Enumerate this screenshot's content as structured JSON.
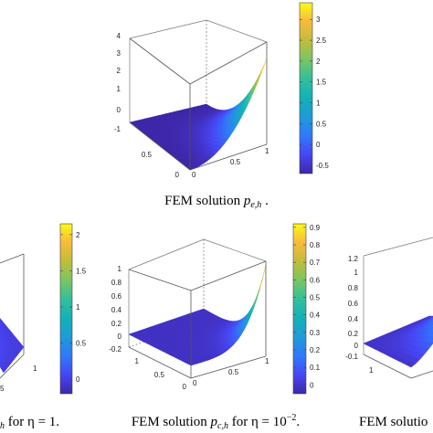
{
  "chart_data": [
    {
      "type": "surface",
      "panel": "top",
      "caption": "FEM solution p_{e,h} .",
      "caption_parts": {
        "prefix": "FEM solution ",
        "var": "p",
        "sub": "e,h",
        "suffix": " ."
      },
      "zticks": [
        "4",
        "3",
        "2",
        "1",
        "0",
        "-1"
      ],
      "zlim": [
        -1,
        4
      ],
      "xticks": [
        "0",
        "0.5",
        "1"
      ],
      "yticks": [
        "0",
        "0.5"
      ],
      "colorbar_ticks": [
        "3",
        "2.5",
        "2",
        "1.5",
        "1",
        "0.5",
        "0",
        "-0.5"
      ],
      "colorbar_range": [
        -0.7,
        3.4
      ],
      "surface": {
        "peak": 3.4,
        "base": -0.7,
        "shape": "exp-decay-from-corner"
      }
    },
    {
      "type": "surface",
      "panel": "bottom-left",
      "caption_visible": "h for η = 1.",
      "caption_parts": {
        "prefix": "",
        "var": "",
        "sub": "h",
        "suffix": " for η = 1."
      },
      "xticks": [
        "1"
      ],
      "yticks": [
        "5"
      ],
      "colorbar_ticks": [
        "2",
        "1.5",
        "1",
        "0.5",
        "0"
      ],
      "colorbar_range": [
        -0.2,
        2.15
      ]
    },
    {
      "type": "surface",
      "panel": "bottom-middle",
      "caption": "FEM solution p_{c,h} for η = 10^{-2}.",
      "caption_parts": {
        "prefix": "FEM solution ",
        "var": "p",
        "sub": "c,h",
        "suffix": " for η = 10",
        "sup": "−2",
        "end": "."
      },
      "zticks": [
        "1",
        "0.8",
        "0.6",
        "0.4",
        "0.2",
        "0",
        "-0.2"
      ],
      "zlim": [
        -0.2,
        1
      ],
      "xticks": [
        "0",
        "0.5",
        "1"
      ],
      "yticks": [
        "1",
        "0.5",
        "0"
      ],
      "colorbar_ticks": [
        "0.9",
        "0.8",
        "0.7",
        "0.6",
        "0.5",
        "0.4",
        "0.3",
        "0.2",
        "0.1",
        "0"
      ],
      "colorbar_range": [
        -0.05,
        0.92
      ]
    },
    {
      "type": "surface",
      "panel": "bottom-right",
      "caption_visible": "FEM solutio",
      "zticks": [
        "1.2",
        "1",
        "0.8",
        "0.6",
        "0.4",
        "0.2",
        "0",
        "-0.1"
      ],
      "yticks": [
        "1"
      ]
    }
  ],
  "colormap": [
    "#3e26a8",
    "#4745f4",
    "#2f79fb",
    "#1e9ad9",
    "#12b1b9",
    "#33c09a",
    "#7bc660",
    "#c2bc3b",
    "#f8ba3d",
    "#f9fb15"
  ]
}
